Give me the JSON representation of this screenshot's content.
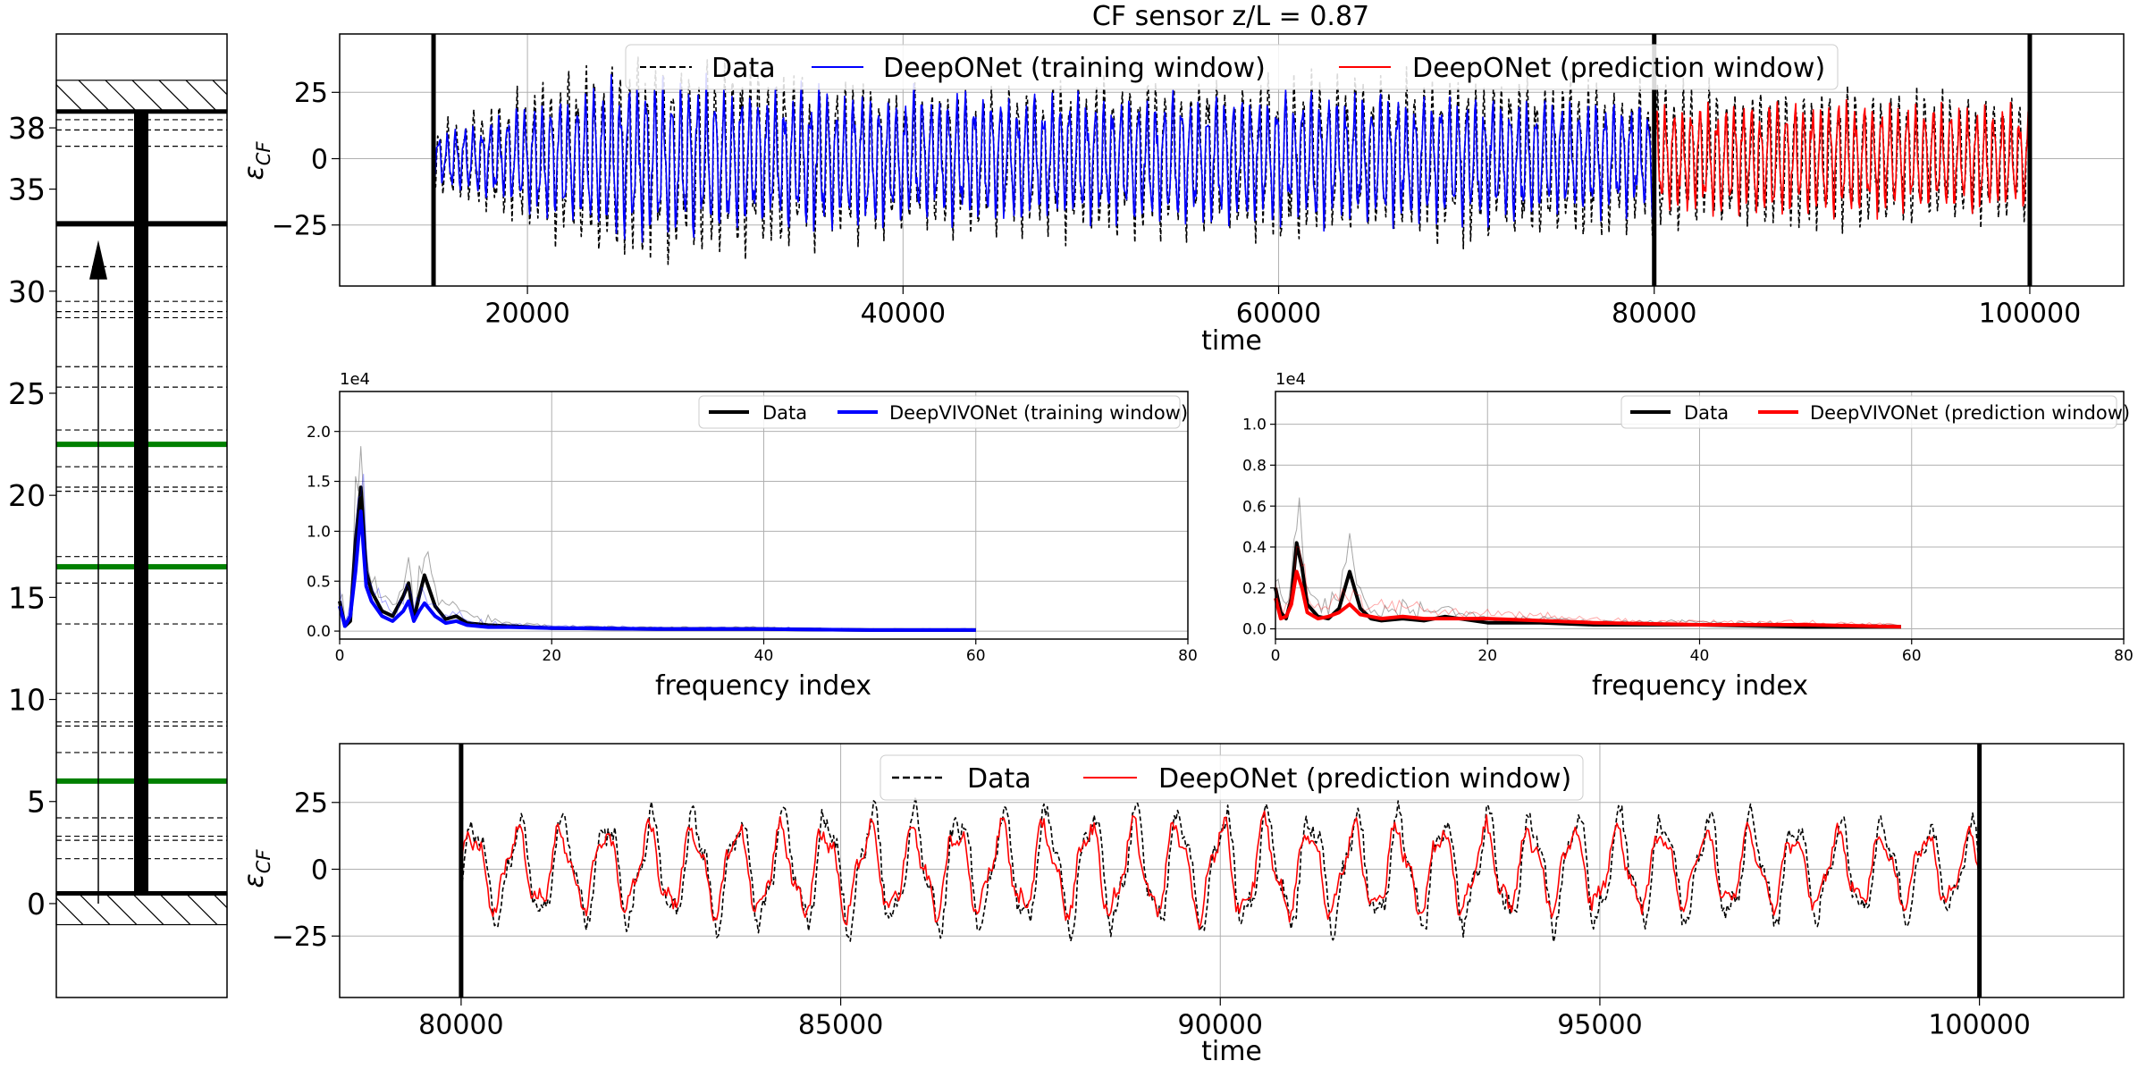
{
  "chart_data": [
    {
      "type": "diagram",
      "panel": "riser-schematic",
      "y_ticks": [
        "0",
        "5",
        "10",
        "15",
        "20",
        "25",
        "30",
        "35",
        "38"
      ],
      "ylim": [
        -4.6,
        42.6
      ],
      "seabed_level": 0.5,
      "top_level": 38.8,
      "dashed_sensor_levels": [
        2.2,
        3.1,
        3.3,
        4.2,
        7.4,
        8.7,
        8.9,
        10.3,
        13.7,
        15.7,
        17.0,
        20.2,
        20.4,
        21.4,
        23.2,
        25.3,
        26.3,
        28.7,
        29.0,
        29.5,
        31.2,
        37.1,
        37.9,
        38.4
      ],
      "green_sensor_levels": [
        6.0,
        16.5,
        22.5
      ],
      "bold_level": 33.3,
      "arrow": {
        "from": 0.0,
        "to": 32.5
      },
      "colors": {
        "green": "#008000",
        "line": "#000000"
      }
    },
    {
      "type": "line",
      "panel": "top-time-series",
      "title": "CF sensor z/L = 0.87",
      "xlabel": "time",
      "ylabel": "ε",
      "ylabel_sub": "CF",
      "xlim": [
        10000,
        105000
      ],
      "ylim": [
        -48,
        47
      ],
      "xticks": [
        "20000",
        "40000",
        "60000",
        "80000",
        "100000"
      ],
      "yticks": [
        "25",
        "0",
        "−25"
      ],
      "xtick_values": [
        20000,
        40000,
        60000,
        80000,
        100000
      ],
      "ytick_values": [
        25,
        0,
        -25
      ],
      "vlines": [
        15000,
        80000,
        100000
      ],
      "grid": true,
      "legend": {
        "placement": "top-center",
        "entries": [
          "Data",
          "DeepONet (training window)",
          "DeepONet (prediction window)"
        ]
      },
      "series": [
        {
          "name": "Data",
          "style": "dashed",
          "color": "#000000",
          "x_range": [
            15000,
            100000
          ],
          "amplitude_envelope": [
            [
              15000,
              14
            ],
            [
              25000,
              42
            ],
            [
              30000,
              40
            ],
            [
              40000,
              30
            ],
            [
              55000,
              32
            ],
            [
              72000,
              34
            ],
            [
              80000,
              30
            ],
            [
              90000,
              28
            ],
            [
              100000,
              24
            ]
          ]
        },
        {
          "name": "DeepONet (training window)",
          "style": "solid",
          "color": "#0000ff",
          "x_range": [
            15000,
            80000
          ],
          "amplitude_envelope": [
            [
              15000,
              10
            ],
            [
              25000,
              32
            ],
            [
              30000,
              30
            ],
            [
              45000,
              25
            ],
            [
              60000,
              26
            ],
            [
              75000,
              24
            ],
            [
              80000,
              22
            ]
          ]
        },
        {
          "name": "DeepONet (prediction window)",
          "style": "solid",
          "color": "#ff0000",
          "x_range": [
            80000,
            100000
          ],
          "amplitude_envelope": [
            [
              80000,
              22
            ],
            [
              90000,
              24
            ],
            [
              100000,
              20
            ]
          ]
        }
      ]
    },
    {
      "type": "line",
      "panel": "spectrum-training",
      "xlabel": "frequency index",
      "ylabel": "",
      "scale_label": "1e4",
      "xlim": [
        0,
        80
      ],
      "ylim": [
        -0.08,
        2.4
      ],
      "xticks": [
        "0",
        "20",
        "40",
        "60",
        "80"
      ],
      "yticks": [
        "0.0",
        "0.5",
        "1.0",
        "1.5",
        "2.0"
      ],
      "xtick_values": [
        0,
        20,
        40,
        60,
        80
      ],
      "ytick_values": [
        0.0,
        0.5,
        1.0,
        1.5,
        2.0
      ],
      "grid": true,
      "legend": {
        "placement": "top-right",
        "entries": [
          "Data",
          "DeepVIVONet (training window)"
        ]
      },
      "series": [
        {
          "name": "Data",
          "color": "#000000",
          "x": [
            0,
            0.5,
            1,
            1.5,
            2,
            2.5,
            3,
            4,
            5,
            6,
            6.5,
            7,
            7.5,
            8,
            9,
            10,
            11,
            12,
            14,
            16,
            20,
            30,
            40,
            50,
            60
          ],
          "y": [
            0.3,
            0.05,
            0.1,
            0.9,
            1.44,
            0.6,
            0.4,
            0.2,
            0.15,
            0.35,
            0.48,
            0.12,
            0.35,
            0.56,
            0.25,
            0.12,
            0.15,
            0.08,
            0.06,
            0.05,
            0.03,
            0.02,
            0.02,
            0.01,
            0.01
          ]
        },
        {
          "name": "DeepVIVONet (training window)",
          "color": "#0000ff",
          "x": [
            0,
            0.5,
            1,
            1.5,
            2,
            2.5,
            3,
            4,
            5,
            6,
            6.5,
            7,
            7.5,
            8,
            9,
            10,
            11,
            12,
            14,
            16,
            20,
            30,
            40,
            50,
            60
          ],
          "y": [
            0.25,
            0.05,
            0.15,
            0.6,
            1.2,
            0.45,
            0.3,
            0.15,
            0.1,
            0.2,
            0.3,
            0.1,
            0.2,
            0.28,
            0.15,
            0.08,
            0.1,
            0.06,
            0.04,
            0.04,
            0.03,
            0.02,
            0.02,
            0.01,
            0.01
          ]
        }
      ]
    },
    {
      "type": "line",
      "panel": "spectrum-prediction",
      "xlabel": "frequency index",
      "ylabel": "",
      "scale_label": "1e4",
      "xlim": [
        0,
        80
      ],
      "ylim": [
        -0.05,
        1.16
      ],
      "xticks": [
        "0",
        "20",
        "40",
        "60",
        "80"
      ],
      "yticks": [
        "0.0",
        "0.2",
        "0.4",
        "0.6",
        "0.8",
        "1.0"
      ],
      "xtick_values": [
        0,
        20,
        40,
        60,
        80
      ],
      "ytick_values": [
        0.0,
        0.2,
        0.4,
        0.6,
        0.8,
        1.0
      ],
      "grid": true,
      "legend": {
        "placement": "top-right",
        "entries": [
          "Data",
          "DeepVIVONet (prediction window)"
        ]
      },
      "series": [
        {
          "name": "Data",
          "color": "#000000",
          "x": [
            0,
            0.5,
            1,
            1.5,
            2,
            2.5,
            3,
            4,
            5,
            6,
            7,
            8,
            9,
            10,
            12,
            14,
            16,
            20,
            25,
            30,
            40,
            50,
            59
          ],
          "y": [
            0.2,
            0.08,
            0.05,
            0.15,
            0.42,
            0.3,
            0.12,
            0.06,
            0.05,
            0.1,
            0.28,
            0.1,
            0.05,
            0.04,
            0.05,
            0.04,
            0.06,
            0.03,
            0.03,
            0.02,
            0.02,
            0.01,
            0.01
          ]
        },
        {
          "name": "DeepVIVONet (prediction window)",
          "color": "#ff0000",
          "x": [
            0,
            0.5,
            1,
            1.5,
            2,
            2.5,
            3,
            4,
            5,
            6,
            7,
            8,
            9,
            10,
            12,
            14,
            16,
            20,
            25,
            30,
            40,
            50,
            59
          ],
          "y": [
            0.15,
            0.05,
            0.06,
            0.12,
            0.28,
            0.2,
            0.08,
            0.05,
            0.06,
            0.08,
            0.12,
            0.07,
            0.06,
            0.05,
            0.06,
            0.05,
            0.05,
            0.05,
            0.04,
            0.03,
            0.02,
            0.02,
            0.01
          ]
        }
      ]
    },
    {
      "type": "line",
      "panel": "bottom-time-series",
      "xlabel": "time",
      "ylabel": "ε",
      "ylabel_sub": "CF",
      "xlim": [
        78400,
        101900
      ],
      "ylim": [
        -48,
        47
      ],
      "xticks": [
        "80000",
        "85000",
        "90000",
        "95000",
        "100000"
      ],
      "yticks": [
        "25",
        "0",
        "−25"
      ],
      "xtick_values": [
        80000,
        85000,
        90000,
        95000,
        100000
      ],
      "ytick_values": [
        25,
        0,
        -25
      ],
      "vlines": [
        80000,
        100000
      ],
      "grid": true,
      "legend": {
        "placement": "top-center",
        "entries": [
          "Data",
          "DeepONet (prediction window)"
        ]
      },
      "series": [
        {
          "name": "Data",
          "style": "dashed",
          "color": "#000000",
          "x_range": [
            80000,
            100000
          ],
          "amplitude_envelope": [
            [
              80000,
              22
            ],
            [
              85000,
              27
            ],
            [
              90000,
              26
            ],
            [
              95000,
              26
            ],
            [
              100000,
              20
            ]
          ]
        },
        {
          "name": "DeepONet (prediction window)",
          "style": "solid",
          "color": "#ff0000",
          "x_range": [
            80000,
            100000
          ],
          "amplitude_envelope": [
            [
              80000,
              18
            ],
            [
              85000,
              20
            ],
            [
              90000,
              22
            ],
            [
              95000,
              18
            ],
            [
              100000,
              16
            ]
          ]
        }
      ]
    }
  ]
}
